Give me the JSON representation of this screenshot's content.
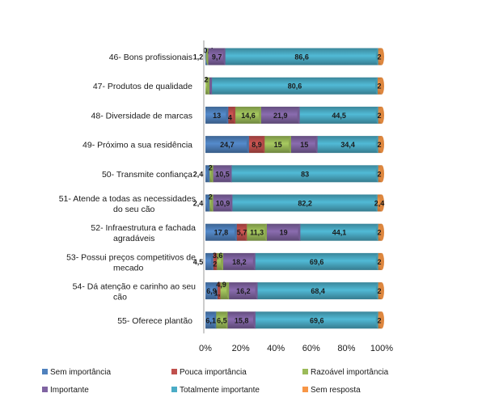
{
  "chart_data": {
    "type": "bar",
    "orientation": "horizontal",
    "stacked": "percent",
    "categories": [
      "46- Bons profissionais",
      "47- Produtos de qualidade",
      "48- Diversidade de marcas",
      "49- Próximo a sua residência",
      "50- Transmite confiança",
      "51- Atende a todas as necessidades do seu cão",
      "52- Infraestrutura e fachada agradáveis",
      "53- Possui preços competitivos de mecado",
      "54- Dá atenção e carinho ao seu cão",
      "55- Oferece plantão"
    ],
    "series": [
      {
        "name": "Sem importância",
        "color": "#4f81bd",
        "values": [
          1.2,
          0,
          13,
          24.7,
          2.4,
          2.4,
          17.8,
          4.5,
          6.9,
          6.1
        ],
        "labels": [
          "1,2",
          "",
          "13",
          "24,7",
          "2,4",
          "2,4",
          "17,8",
          "4,5",
          "6,9",
          "6,1"
        ]
      },
      {
        "name": "Pouca importância",
        "color": "#c0504d",
        "values": [
          0,
          0,
          4,
          8.9,
          0,
          0,
          5.7,
          2,
          1.6,
          0
        ],
        "labels": [
          "",
          "",
          "4",
          "8,9",
          "",
          "",
          "5,7",
          "2",
          "1,6",
          ""
        ]
      },
      {
        "name": "Razoável importância",
        "color": "#9bbb59",
        "values": [
          0.4,
          2,
          14.6,
          15,
          2,
          2,
          11.3,
          3.6,
          4.9,
          6.5
        ],
        "labels": [
          "0,4",
          "2",
          "14,6",
          "15",
          "2",
          "2",
          "11,3",
          "3,6",
          "4,9",
          "6,5"
        ]
      },
      {
        "name": "Importante",
        "color": "#8064a2",
        "values": [
          9.7,
          1.2,
          21.9,
          15,
          10.5,
          10.9,
          19,
          18.2,
          16.2,
          15.8
        ],
        "labels": [
          "9,7",
          "1,2",
          "21,9",
          "15",
          "10,5",
          "10,9",
          "19",
          "18,2",
          "16,2",
          "15,8"
        ]
      },
      {
        "name": "Totalmente importante",
        "color": "#4bacc6",
        "values": [
          86.6,
          80.6,
          44.5,
          34.4,
          83,
          82.2,
          44.1,
          69.6,
          68.4,
          69.6
        ],
        "labels": [
          "86,6",
          "80,6",
          "44,5",
          "34,4",
          "83",
          "82,2",
          "44,1",
          "69,6",
          "68,4",
          "69,6"
        ]
      },
      {
        "name": "Sem resposta",
        "color": "#f79646",
        "values": [
          2,
          2,
          2,
          2,
          2,
          2.4,
          2,
          2,
          2,
          2
        ],
        "labels": [
          "2",
          "2",
          "2",
          "2",
          "2",
          "2,4",
          "2",
          "2",
          "2",
          "2"
        ]
      }
    ],
    "xticks": [
      "0%",
      "20%",
      "40%",
      "60%",
      "80%",
      "100%"
    ],
    "xlim": [
      0,
      100
    ],
    "grid": false,
    "legend": "bottom",
    "title": "",
    "xlabel": "",
    "ylabel": ""
  }
}
